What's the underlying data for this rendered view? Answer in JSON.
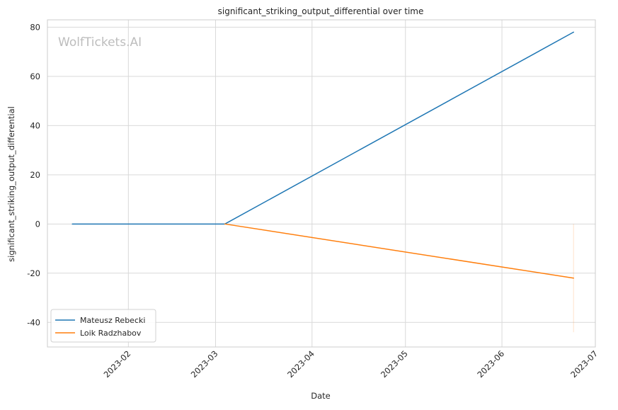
{
  "chart_data": {
    "type": "line",
    "title": "significant_striking_output_differential over time",
    "xlabel": "Date",
    "ylabel": "significant_striking_output_differential",
    "watermark": "WolfTickets.AI",
    "xlim": [
      "2023-01-06",
      "2023-07-01"
    ],
    "ylim": [
      -50,
      83
    ],
    "x_ticks": [
      "2023-02",
      "2023-03",
      "2023-04",
      "2023-05",
      "2023-06",
      "2023-07"
    ],
    "x_tick_dates": [
      "2023-02-01",
      "2023-03-01",
      "2023-04-01",
      "2023-05-01",
      "2023-06-01",
      "2023-07-01"
    ],
    "y_ticks": [
      -40,
      -20,
      0,
      20,
      40,
      60,
      80
    ],
    "grid": true,
    "legend_position": "lower-left",
    "series": [
      {
        "name": "Mateusz Rebecki",
        "color": "#1f77b4",
        "x": [
          "2023-01-14",
          "2023-03-04",
          "2023-06-24"
        ],
        "y": [
          0,
          0,
          78
        ]
      },
      {
        "name": "Loik Radzhabov",
        "color": "#ff7f0e",
        "x": [
          "2023-03-04",
          "2023-06-24"
        ],
        "y": [
          0,
          -22
        ]
      }
    ],
    "band": {
      "color": "#ff7f0e",
      "x": "2023-06-24",
      "y_range": [
        -44,
        0
      ]
    }
  }
}
